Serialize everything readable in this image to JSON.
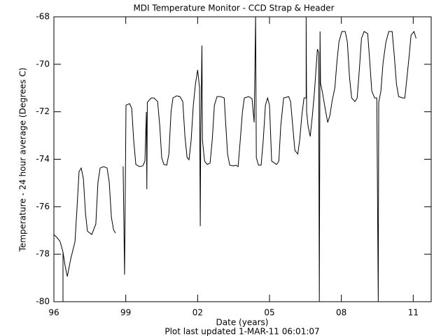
{
  "chart_data": {
    "type": "line",
    "title": "MDI Temperature Monitor - CCD Strap & Header",
    "x_label": "Date (years)",
    "y_label": "Temperature - 24 hour average (Degrees C)",
    "annotation": "Plot last updated  1-MAR-11  06:01:07",
    "xlim": [
      1996,
      2011.75
    ],
    "xticks": [
      {
        "value": 1996,
        "label": "96"
      },
      {
        "value": 1999,
        "label": "99"
      },
      {
        "value": 2002,
        "label": "02"
      },
      {
        "value": 2005,
        "label": "05"
      },
      {
        "value": 2008,
        "label": "08"
      },
      {
        "value": 2011,
        "label": "11"
      }
    ],
    "ylim": [
      -80,
      -68
    ],
    "yticks": [
      -80,
      -78,
      -76,
      -74,
      -72,
      -70,
      -68
    ],
    "color": "#000000",
    "x": [
      1996.0,
      1996.15,
      1996.26,
      1996.38,
      1996.38,
      1996.38,
      1996.47,
      1996.56,
      1996.7,
      1996.88,
      1996.96,
      1997.05,
      1997.14,
      1997.23,
      1997.32,
      1997.4,
      1997.58,
      1997.75,
      1997.84,
      1997.93,
      1998.08,
      1998.22,
      1998.31,
      1998.4,
      1998.49,
      1998.57,
      1998.7,
      1998.89,
      1998.95,
      1999.01,
      1999.16,
      1999.25,
      1999.33,
      1999.42,
      1999.57,
      1999.71,
      1999.8,
      1999.86,
      1999.88,
      1999.9,
      2000.06,
      2000.18,
      2000.33,
      2000.42,
      2000.5,
      2000.59,
      2000.71,
      2000.8,
      2000.89,
      2000.97,
      2001.12,
      2001.26,
      2001.38,
      2001.47,
      2001.56,
      2001.64,
      2001.73,
      2001.82,
      2001.91,
      2002.0,
      2002.08,
      2002.11,
      2002.13,
      2002.18,
      2002.2,
      2002.29,
      2002.4,
      2002.52,
      2002.61,
      2002.7,
      2002.81,
      2002.96,
      2003.11,
      2003.16,
      2003.25,
      2003.34,
      2003.49,
      2003.6,
      2003.69,
      2003.78,
      2003.87,
      2003.95,
      2004.13,
      2004.27,
      2004.36,
      2004.42,
      2004.45,
      2004.54,
      2004.65,
      2004.74,
      2004.83,
      2004.92,
      2005.0,
      2005.09,
      2005.3,
      2005.39,
      2005.47,
      2005.59,
      2005.8,
      2005.88,
      2005.97,
      2006.06,
      2006.18,
      2006.26,
      2006.35,
      2006.44,
      2006.53,
      2006.53,
      2006.55,
      2006.61,
      2006.7,
      2006.79,
      2006.88,
      2006.94,
      2007.0,
      2007.05,
      2007.08,
      2007.11,
      2007.13,
      2007.2,
      2007.35,
      2007.43,
      2007.52,
      2007.61,
      2007.73,
      2007.81,
      2007.9,
      2008.02,
      2008.16,
      2008.25,
      2008.34,
      2008.43,
      2008.57,
      2008.66,
      2008.75,
      2008.84,
      2008.95,
      2009.1,
      2009.19,
      2009.27,
      2009.39,
      2009.48,
      2009.54,
      2009.56,
      2009.65,
      2009.74,
      2009.86,
      2009.98,
      2010.12,
      2010.21,
      2010.3,
      2010.39,
      2010.56,
      2010.65,
      2010.74,
      2010.83,
      2010.91,
      2011.03,
      2011.12
    ],
    "values": [
      -77.17,
      -77.32,
      -77.47,
      -77.91,
      -79.98,
      -77.91,
      -78.5,
      -78.94,
      -78.21,
      -77.47,
      -76.14,
      -74.52,
      -74.37,
      -74.81,
      -76.29,
      -77.03,
      -77.17,
      -76.73,
      -74.96,
      -74.37,
      -74.31,
      -74.37,
      -74.96,
      -76.44,
      -76.97,
      -77.11,
      null,
      -74.3,
      -78.86,
      -71.72,
      -71.66,
      -71.86,
      -73.19,
      -74.22,
      -74.31,
      -74.28,
      -74.08,
      -72.01,
      -75.26,
      -71.6,
      -71.42,
      -71.42,
      -71.57,
      -72.6,
      -73.93,
      -74.22,
      -74.25,
      -73.78,
      -72.01,
      -71.42,
      -71.33,
      -71.36,
      -71.57,
      -73.04,
      -73.93,
      -74.02,
      -73.19,
      -71.72,
      -70.83,
      -70.24,
      -70.98,
      -76.82,
      -72.9,
      -69.21,
      -73.19,
      -74.08,
      -74.22,
      -74.16,
      -73.19,
      -71.72,
      -71.36,
      -71.36,
      -71.42,
      -72.3,
      -73.78,
      -74.25,
      -74.28,
      -74.25,
      -74.31,
      -73.19,
      -72.01,
      -71.42,
      -71.36,
      -71.45,
      -72.45,
      -68.0,
      -73.93,
      -74.25,
      -74.25,
      -73.19,
      -71.72,
      -71.42,
      -71.72,
      -74.08,
      -74.22,
      -74.08,
      -72.6,
      -71.42,
      -71.36,
      -71.57,
      -72.6,
      -73.63,
      -73.78,
      -73.19,
      -72.16,
      -71.42,
      -71.42,
      -68.0,
      -72.0,
      -72.6,
      -73.04,
      -72.16,
      -71.13,
      -70.24,
      -69.36,
      -69.5,
      -79.98,
      -68.62,
      -70.8,
      -71.13,
      -72.01,
      -72.45,
      -72.16,
      -71.57,
      -70.98,
      -69.95,
      -69.06,
      -68.62,
      -68.62,
      -69.06,
      -70.54,
      -71.42,
      -71.57,
      -71.42,
      -70.24,
      -68.91,
      -68.62,
      -68.71,
      -69.95,
      -71.13,
      -71.42,
      -71.42,
      -79.98,
      -71.6,
      -71.13,
      -69.95,
      -69.06,
      -68.62,
      -68.62,
      -69.65,
      -70.83,
      -71.36,
      -71.42,
      -71.42,
      -70.54,
      -69.65,
      -68.77,
      -68.62,
      -68.91
    ]
  }
}
